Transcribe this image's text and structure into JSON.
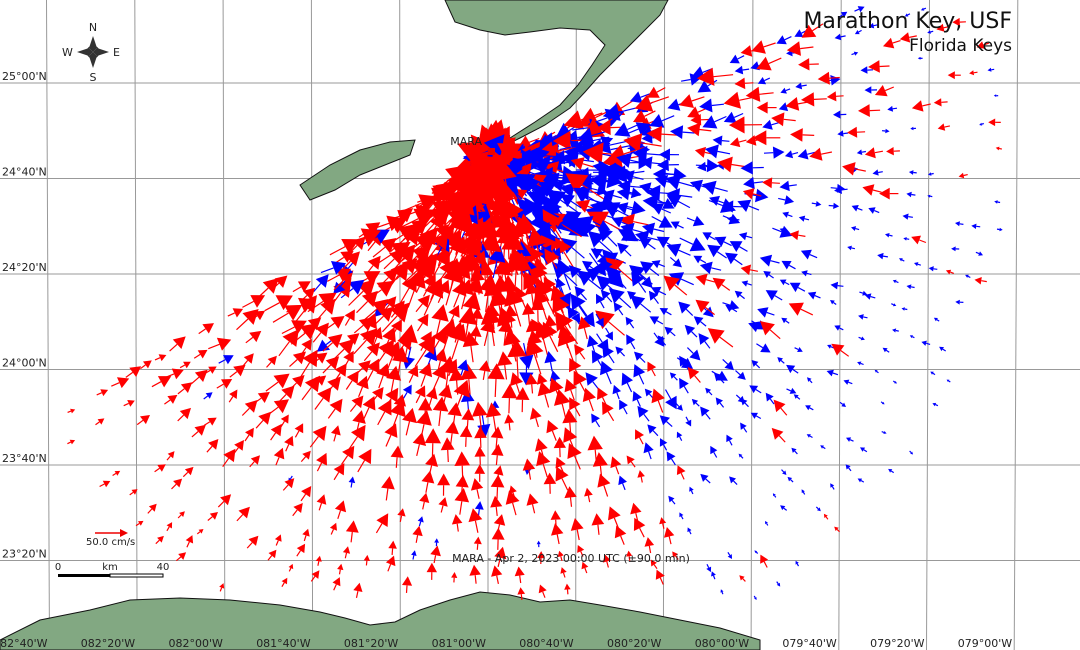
{
  "header": {
    "title": "Marathon Key, USF",
    "subtitle": "Florida Keys"
  },
  "station": "MARA",
  "timestamp": "MARA - Apr 2, 2023 00:00 UTC (±90.0 min)",
  "compass": {
    "north": "N",
    "east": "E",
    "south": "S",
    "west": "W"
  },
  "scale": {
    "vector": "50.0 cm/s",
    "distance_start": "0",
    "distance_unit": "km",
    "distance_end": "40"
  },
  "lat_labels": [
    "25°00'N",
    "24°40'N",
    "24°20'N",
    "24°00'N",
    "23°40'N",
    "23°20'N"
  ],
  "lon_labels": [
    "082°40'W",
    "082°20'W",
    "082°00'W",
    "081°40'W",
    "081°20'W",
    "081°00'W",
    "080°40'W",
    "080°20'W",
    "080°00'W",
    "079°40'W",
    "079°20'W",
    "079°00'W"
  ]
}
